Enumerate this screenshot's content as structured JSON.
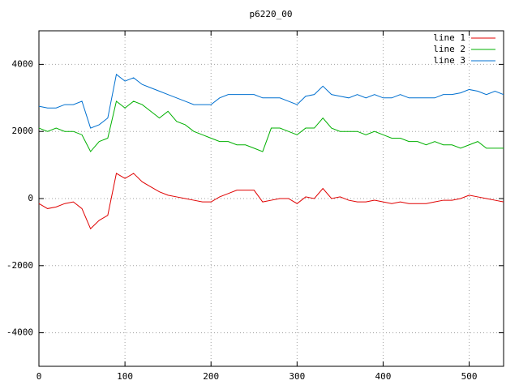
{
  "chart_data": {
    "type": "line",
    "title": "p6220_00",
    "x": [
      0,
      10,
      20,
      30,
      40,
      50,
      60,
      70,
      80,
      90,
      100,
      110,
      120,
      130,
      140,
      150,
      160,
      170,
      180,
      190,
      200,
      210,
      220,
      230,
      240,
      250,
      260,
      270,
      280,
      290,
      300,
      310,
      320,
      330,
      340,
      350,
      360,
      370,
      380,
      390,
      400,
      410,
      420,
      430,
      440,
      450,
      460,
      470,
      480,
      490,
      500,
      510,
      520,
      530,
      540
    ],
    "series": [
      {
        "name": "line 1",
        "color": "#e00000",
        "values": [
          -150,
          -300,
          -250,
          -150,
          -100,
          -300,
          -900,
          -650,
          -500,
          750,
          600,
          750,
          500,
          350,
          200,
          100,
          50,
          0,
          -50,
          -100,
          -100,
          50,
          150,
          250,
          250,
          250,
          -100,
          -50,
          0,
          0,
          -150,
          50,
          0,
          300,
          0,
          50,
          -50,
          -100,
          -100,
          -50,
          -100,
          -150,
          -100,
          -150,
          -150,
          -150,
          -100,
          -50,
          -50,
          0,
          100,
          50,
          0,
          -50,
          -100
        ]
      },
      {
        "name": "line 2",
        "color": "#00b000",
        "values": [
          2100,
          2000,
          2100,
          2000,
          2000,
          1900,
          1400,
          1700,
          1800,
          2900,
          2700,
          2900,
          2800,
          2600,
          2400,
          2600,
          2300,
          2200,
          2000,
          1900,
          1800,
          1700,
          1700,
          1600,
          1600,
          1500,
          1400,
          2100,
          2100,
          2000,
          1900,
          2100,
          2100,
          2400,
          2100,
          2000,
          2000,
          2000,
          1900,
          2000,
          1900,
          1800,
          1800,
          1700,
          1700,
          1600,
          1700,
          1600,
          1600,
          1500,
          1600,
          1700,
          1500,
          1500,
          1500
        ]
      },
      {
        "name": "line 3",
        "color": "#0070d0",
        "values": [
          2750,
          2700,
          2700,
          2800,
          2800,
          2900,
          2100,
          2200,
          2400,
          3700,
          3500,
          3600,
          3400,
          3300,
          3200,
          3100,
          3000,
          2900,
          2800,
          2800,
          2800,
          3000,
          3100,
          3100,
          3100,
          3100,
          3000,
          3000,
          3000,
          2900,
          2800,
          3050,
          3100,
          3350,
          3100,
          3050,
          3000,
          3100,
          3000,
          3100,
          3000,
          3000,
          3100,
          3000,
          3000,
          3000,
          3000,
          3100,
          3100,
          3150,
          3250,
          3200,
          3100,
          3200,
          3100
        ]
      }
    ],
    "xlim": [
      0,
      540
    ],
    "xticks": [
      0,
      100,
      200,
      300,
      400,
      500
    ],
    "ylim": [
      -5000,
      5000
    ],
    "yticks": [
      -4000,
      -2000,
      0,
      2000,
      4000
    ],
    "grid": true,
    "legend": "top-right"
  }
}
